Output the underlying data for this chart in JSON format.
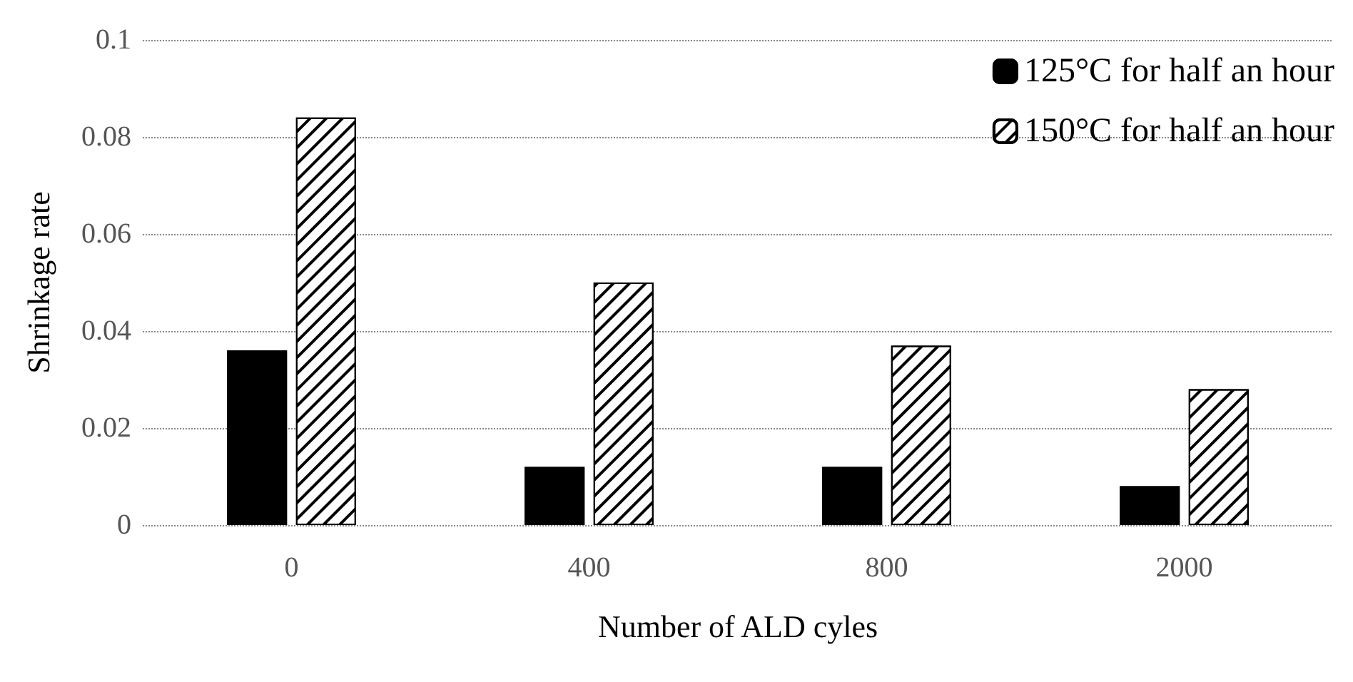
{
  "chart_data": {
    "type": "bar",
    "xlabel": "Number of ALD cyles",
    "ylabel": "Shrinkage rate",
    "categories": [
      "0",
      "400",
      "800",
      "2000"
    ],
    "series": [
      {
        "name": "125°C for half an hour",
        "color": "#000000",
        "values": [
          0.036,
          0.012,
          0.012,
          0.008
        ]
      },
      {
        "name": "150°C for half an hour",
        "color": "#ffffff",
        "values": [
          0.084,
          0.05,
          0.037,
          0.028
        ]
      }
    ],
    "ylim": [
      0,
      0.1
    ],
    "yticks": [
      0,
      0.02,
      0.04,
      0.06,
      0.08,
      0.1
    ],
    "grid": "y",
    "legend": "top right"
  }
}
